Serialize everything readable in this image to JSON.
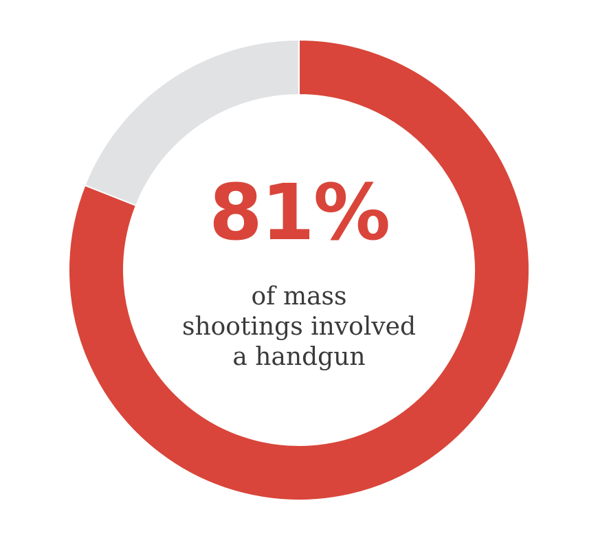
{
  "chart_data": {
    "type": "pie",
    "variant": "donut",
    "slices": [
      {
        "value": 81
      },
      {
        "value": 19
      }
    ],
    "colors": [
      "#d9453a",
      "#e1e2e4"
    ],
    "center_value": "81%",
    "center_caption": [
      "of mass",
      "shootings involved",
      "a handgun"
    ]
  }
}
